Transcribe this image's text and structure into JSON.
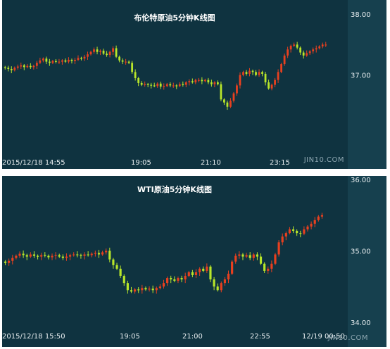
{
  "colors": {
    "background": "#0f3340",
    "axis_strip": "#16404e",
    "up": "#e8401f",
    "down": "#b8e62a",
    "separator": "#ffffff"
  },
  "chart_data": [
    {
      "type": "candlestick",
      "title": "布伦特原油5分钟K线图",
      "watermark": "JIN10.COM",
      "xticks": [
        "2015/12/18 14:55",
        "19:05",
        "21:10",
        "23:15"
      ],
      "yticks": [
        "38.00",
        "37.00"
      ],
      "ylim": [
        36.2,
        38.0
      ],
      "y_axis_position": "right",
      "close": [
        37.12,
        37.1,
        37.08,
        37.12,
        37.14,
        37.16,
        37.13,
        37.15,
        37.13,
        37.15,
        37.2,
        37.24,
        37.27,
        37.22,
        37.2,
        37.23,
        37.22,
        37.22,
        37.24,
        37.22,
        37.25,
        37.23,
        37.25,
        37.28,
        37.27,
        37.3,
        37.34,
        37.38,
        37.42,
        37.38,
        37.4,
        37.35,
        37.33,
        37.38,
        37.44,
        37.3,
        37.24,
        37.22,
        37.22,
        37.2,
        37.05,
        36.95,
        36.87,
        36.84,
        36.85,
        36.84,
        36.83,
        36.82,
        36.86,
        36.81,
        36.82,
        36.85,
        36.83,
        36.83,
        36.82,
        36.85,
        36.84,
        36.88,
        36.9,
        36.88,
        36.92,
        36.92,
        36.9,
        36.92,
        36.88,
        36.85,
        36.88,
        36.85,
        36.6,
        36.55,
        36.48,
        36.58,
        36.7,
        36.83,
        37.0,
        37.05,
        37.02,
        37.07,
        37.05,
        37.0,
        37.05,
        37.02,
        36.88,
        36.78,
        36.84,
        36.92,
        37.05,
        37.18,
        37.32,
        37.42,
        37.48,
        37.5,
        37.45,
        37.37,
        37.32,
        37.36,
        37.39,
        37.42,
        37.44,
        37.47,
        37.5,
        37.5
      ],
      "open": [
        37.13,
        37.12,
        37.1,
        37.08,
        37.12,
        37.14,
        37.16,
        37.13,
        37.15,
        37.13,
        37.15,
        37.2,
        37.24,
        37.27,
        37.22,
        37.2,
        37.23,
        37.22,
        37.22,
        37.24,
        37.22,
        37.25,
        37.23,
        37.25,
        37.28,
        37.27,
        37.3,
        37.34,
        37.38,
        37.42,
        37.38,
        37.4,
        37.35,
        37.33,
        37.38,
        37.44,
        37.3,
        37.24,
        37.22,
        37.22,
        37.2,
        37.05,
        36.95,
        36.87,
        36.84,
        36.85,
        36.84,
        36.83,
        36.82,
        36.86,
        36.81,
        36.82,
        36.85,
        36.83,
        36.83,
        36.82,
        36.85,
        36.84,
        36.88,
        36.9,
        36.88,
        36.92,
        36.92,
        36.9,
        36.92,
        36.88,
        36.85,
        36.88,
        36.85,
        36.6,
        36.55,
        36.48,
        36.58,
        36.7,
        36.83,
        37.0,
        37.05,
        37.02,
        37.07,
        37.05,
        37.0,
        37.05,
        37.02,
        36.88,
        36.78,
        36.84,
        36.92,
        37.05,
        37.18,
        37.32,
        37.42,
        37.48,
        37.5,
        37.45,
        37.37,
        37.32,
        37.36,
        37.39,
        37.42,
        37.44,
        37.47,
        37.5
      ]
    },
    {
      "type": "candlestick",
      "title": "WTI原油5分钟K线图",
      "watermark": "JIN10.COM",
      "xticks": [
        "2015/12/18 15:50",
        "19:05",
        "21:00",
        "22:55",
        "12/19 00:50"
      ],
      "yticks": [
        "36.00",
        "35.00",
        "34.00"
      ],
      "ylim": [
        34.0,
        36.0
      ],
      "y_axis_position": "right",
      "close": [
        34.83,
        34.86,
        34.9,
        34.93,
        34.96,
        34.94,
        34.92,
        34.95,
        34.93,
        34.92,
        34.94,
        34.93,
        34.91,
        34.93,
        34.94,
        34.92,
        34.9,
        34.92,
        34.94,
        34.95,
        34.94,
        34.93,
        34.95,
        34.94,
        34.96,
        34.97,
        34.95,
        34.98,
        35.0,
        34.88,
        34.8,
        34.75,
        34.65,
        34.55,
        34.45,
        34.43,
        34.46,
        34.45,
        34.48,
        34.46,
        34.47,
        34.45,
        34.48,
        34.5,
        34.55,
        34.62,
        34.6,
        34.58,
        34.62,
        34.6,
        34.65,
        34.7,
        34.66,
        34.7,
        34.75,
        34.72,
        34.78,
        34.6,
        34.5,
        34.45,
        34.55,
        34.6,
        34.68,
        34.85,
        34.93,
        34.95,
        34.92,
        34.94,
        34.9,
        34.95,
        34.92,
        34.82,
        34.72,
        34.75,
        34.82,
        34.95,
        35.12,
        35.2,
        35.25,
        35.3,
        35.28,
        35.25,
        35.24,
        35.3,
        35.34,
        35.38,
        35.43,
        35.48,
        35.5
      ],
      "open": [
        34.85,
        34.83,
        34.86,
        34.9,
        34.93,
        34.96,
        34.94,
        34.92,
        34.95,
        34.93,
        34.92,
        34.94,
        34.93,
        34.91,
        34.93,
        34.94,
        34.92,
        34.9,
        34.92,
        34.94,
        34.95,
        34.94,
        34.93,
        34.95,
        34.94,
        34.96,
        34.97,
        34.95,
        34.98,
        35.0,
        34.88,
        34.8,
        34.75,
        34.65,
        34.55,
        34.45,
        34.43,
        34.46,
        34.45,
        34.48,
        34.46,
        34.47,
        34.45,
        34.48,
        34.5,
        34.55,
        34.62,
        34.6,
        34.58,
        34.62,
        34.6,
        34.65,
        34.7,
        34.66,
        34.7,
        34.75,
        34.72,
        34.78,
        34.6,
        34.5,
        34.45,
        34.55,
        34.6,
        34.68,
        34.85,
        34.93,
        34.95,
        34.92,
        34.94,
        34.9,
        34.95,
        34.92,
        34.82,
        34.72,
        34.75,
        34.82,
        34.95,
        35.12,
        35.2,
        35.25,
        35.3,
        35.28,
        35.25,
        35.24,
        35.3,
        35.34,
        35.38,
        35.43,
        35.48
      ]
    }
  ]
}
